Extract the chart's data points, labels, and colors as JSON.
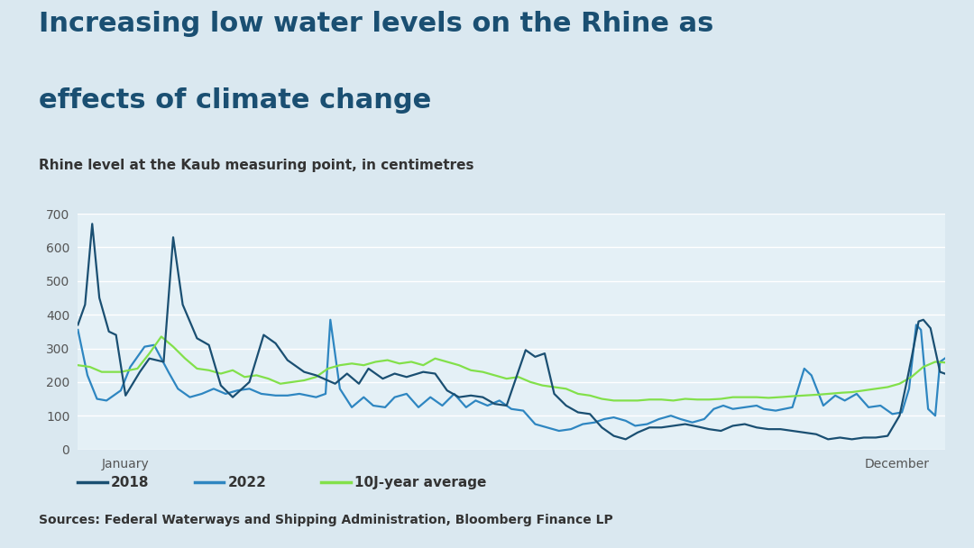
{
  "title_line1": "Increasing low water levels on the Rhine as",
  "title_line2": "effects of climate change",
  "subtitle": "Rhine level at the Kaub measuring point, in centimetres",
  "sources": "Sources: Federal Waterways and Shipping Administration, Bloomberg Finance LP",
  "legend": [
    "2018",
    "2022",
    "10J-year average"
  ],
  "color_2018": "#1a4f72",
  "color_2022": "#2e86c1",
  "color_avg": "#82e04a",
  "background": "#dae8f0",
  "plot_bg": "#e4f0f6",
  "ylim": [
    0,
    700
  ],
  "yticks": [
    0,
    100,
    200,
    300,
    400,
    500,
    600,
    700
  ],
  "n_points": 365
}
